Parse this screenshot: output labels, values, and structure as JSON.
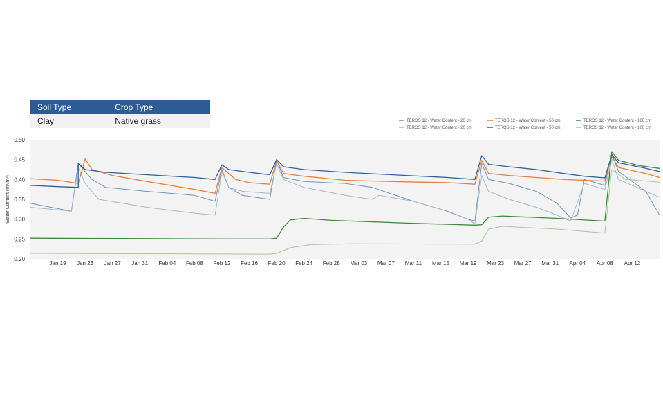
{
  "table": {
    "headers": [
      "Soil Type",
      "Crop Type"
    ],
    "rows": [
      [
        "Clay",
        "Native grass"
      ]
    ],
    "header_color": "#2b5d94"
  },
  "chart_data": {
    "type": "line",
    "title": "",
    "xlabel": "",
    "ylabel": "Water Content (m³/m³)",
    "ylim": [
      0.2,
      0.5
    ],
    "yticks": [
      "0.20",
      "0.25",
      "0.30",
      "0.35",
      "0.40",
      "0.45",
      "0.50"
    ],
    "xlim": [
      "2024-01-15",
      "2024-04-16"
    ],
    "xticks": [
      "Jan 19",
      "Jan 23",
      "Jan 27",
      "Jan 31",
      "Feb 04",
      "Feb 08",
      "Feb 12",
      "Feb 16",
      "Feb 20",
      "Feb 24",
      "Feb 28",
      "Mar 03",
      "Mar 07",
      "Mar 11",
      "Mar 15",
      "Mar 19",
      "Mar 23",
      "Mar 27",
      "Mar 31",
      "Apr 04",
      "Apr 08",
      "Apr 12"
    ],
    "grid": false,
    "legend_position": "top-right",
    "plot_background": "#f3f3f3",
    "series": [
      {
        "name": "TEROS 12 - Water Content - 20 cm",
        "color": "#6b93c0",
        "width": 1,
        "points": [
          [
            "2024-01-15",
            0.34
          ],
          [
            "2024-01-18",
            0.33
          ],
          [
            "2024-01-21",
            0.32
          ],
          [
            "2024-01-22",
            0.441
          ],
          [
            "2024-01-23",
            0.42
          ],
          [
            "2024-01-24",
            0.4
          ],
          [
            "2024-01-26",
            0.38
          ],
          [
            "2024-02-01",
            0.37
          ],
          [
            "2024-02-08",
            0.36
          ],
          [
            "2024-02-10",
            0.35
          ],
          [
            "2024-02-11",
            0.345
          ],
          [
            "2024-02-12",
            0.425
          ],
          [
            "2024-02-13",
            0.38
          ],
          [
            "2024-02-15",
            0.36
          ],
          [
            "2024-02-19",
            0.35
          ],
          [
            "2024-02-20",
            0.449
          ],
          [
            "2024-02-21",
            0.405
          ],
          [
            "2024-02-24",
            0.395
          ],
          [
            "2024-03-01",
            0.39
          ],
          [
            "2024-03-05",
            0.38
          ],
          [
            "2024-03-11",
            0.345
          ],
          [
            "2024-03-16",
            0.32
          ],
          [
            "2024-03-19",
            0.3
          ],
          [
            "2024-03-20",
            0.295
          ],
          [
            "2024-03-21",
            0.44
          ],
          [
            "2024-03-22",
            0.4
          ],
          [
            "2024-03-25",
            0.39
          ],
          [
            "2024-03-29",
            0.37
          ],
          [
            "2024-04-01",
            0.34
          ],
          [
            "2024-04-03",
            0.303
          ],
          [
            "2024-04-04",
            0.31
          ],
          [
            "2024-04-05",
            0.4
          ],
          [
            "2024-04-08",
            0.385
          ],
          [
            "2024-04-09",
            0.465
          ],
          [
            "2024-04-10",
            0.42
          ],
          [
            "2024-04-14",
            0.37
          ],
          [
            "2024-04-16",
            0.31
          ]
        ]
      },
      {
        "name": "TEROS 12 - Water Content - 20 cm",
        "color": "#a5b7c7",
        "width": 1,
        "points": [
          [
            "2024-01-15",
            0.33
          ],
          [
            "2024-01-21",
            0.32
          ],
          [
            "2024-01-22",
            0.43
          ],
          [
            "2024-01-23",
            0.39
          ],
          [
            "2024-01-25",
            0.35
          ],
          [
            "2024-02-01",
            0.33
          ],
          [
            "2024-02-08",
            0.315
          ],
          [
            "2024-02-11",
            0.31
          ],
          [
            "2024-02-12",
            0.42
          ],
          [
            "2024-02-13",
            0.38
          ],
          [
            "2024-02-15",
            0.37
          ],
          [
            "2024-02-19",
            0.365
          ],
          [
            "2024-02-20",
            0.44
          ],
          [
            "2024-02-21",
            0.4
          ],
          [
            "2024-02-24",
            0.38
          ],
          [
            "2024-03-01",
            0.36
          ],
          [
            "2024-03-05",
            0.35
          ],
          [
            "2024-03-06",
            0.36
          ],
          [
            "2024-03-11",
            0.345
          ],
          [
            "2024-03-15",
            0.325
          ],
          [
            "2024-03-19",
            0.3
          ],
          [
            "2024-03-20",
            0.288
          ],
          [
            "2024-03-21",
            0.41
          ],
          [
            "2024-03-22",
            0.37
          ],
          [
            "2024-03-25",
            0.35
          ],
          [
            "2024-03-29",
            0.33
          ],
          [
            "2024-04-01",
            0.31
          ],
          [
            "2024-04-03",
            0.295
          ],
          [
            "2024-04-05",
            0.39
          ],
          [
            "2024-04-08",
            0.375
          ],
          [
            "2024-04-09",
            0.45
          ],
          [
            "2024-04-10",
            0.4
          ],
          [
            "2024-04-14",
            0.37
          ],
          [
            "2024-04-16",
            0.355
          ]
        ]
      },
      {
        "name": "TEROS 12 - Water Content - 50 cm",
        "color": "#e87f3c",
        "width": 1.3,
        "points": [
          [
            "2024-01-15",
            0.402
          ],
          [
            "2024-01-19",
            0.398
          ],
          [
            "2024-01-22",
            0.39
          ],
          [
            "2024-01-23",
            0.452
          ],
          [
            "2024-01-24",
            0.425
          ],
          [
            "2024-01-27",
            0.41
          ],
          [
            "2024-02-01",
            0.395
          ],
          [
            "2024-02-08",
            0.375
          ],
          [
            "2024-02-11",
            0.365
          ],
          [
            "2024-02-12",
            0.43
          ],
          [
            "2024-02-14",
            0.4
          ],
          [
            "2024-02-16",
            0.392
          ],
          [
            "2024-02-19",
            0.388
          ],
          [
            "2024-02-20",
            0.448
          ],
          [
            "2024-02-21",
            0.415
          ],
          [
            "2024-02-24",
            0.408
          ],
          [
            "2024-03-01",
            0.398
          ],
          [
            "2024-03-10",
            0.394
          ],
          [
            "2024-03-16",
            0.392
          ],
          [
            "2024-03-20",
            0.388
          ],
          [
            "2024-03-21",
            0.448
          ],
          [
            "2024-03-22",
            0.415
          ],
          [
            "2024-03-25",
            0.41
          ],
          [
            "2024-03-29",
            0.405
          ],
          [
            "2024-04-02",
            0.4
          ],
          [
            "2024-04-05",
            0.398
          ],
          [
            "2024-04-08",
            0.396
          ],
          [
            "2024-04-09",
            0.458
          ],
          [
            "2024-04-10",
            0.43
          ],
          [
            "2024-04-14",
            0.415
          ],
          [
            "2024-04-16",
            0.405
          ]
        ]
      },
      {
        "name": "TEROS 12 - Water Content - 50 cm",
        "color": "#2f5fa0",
        "width": 1.3,
        "points": [
          [
            "2024-01-15",
            0.385
          ],
          [
            "2024-01-19",
            0.382
          ],
          [
            "2024-01-22",
            0.38
          ],
          [
            "2024-01-22",
            0.44
          ],
          [
            "2024-01-23",
            0.425
          ],
          [
            "2024-01-26",
            0.418
          ],
          [
            "2024-02-01",
            0.412
          ],
          [
            "2024-02-08",
            0.405
          ],
          [
            "2024-02-11",
            0.4
          ],
          [
            "2024-02-12",
            0.437
          ],
          [
            "2024-02-13",
            0.425
          ],
          [
            "2024-02-16",
            0.418
          ],
          [
            "2024-02-19",
            0.412
          ],
          [
            "2024-02-20",
            0.45
          ],
          [
            "2024-02-21",
            0.432
          ],
          [
            "2024-02-24",
            0.425
          ],
          [
            "2024-03-01",
            0.418
          ],
          [
            "2024-03-10",
            0.41
          ],
          [
            "2024-03-16",
            0.405
          ],
          [
            "2024-03-20",
            0.4
          ],
          [
            "2024-03-21",
            0.46
          ],
          [
            "2024-03-22",
            0.438
          ],
          [
            "2024-03-25",
            0.432
          ],
          [
            "2024-03-29",
            0.425
          ],
          [
            "2024-04-02",
            0.415
          ],
          [
            "2024-04-05",
            0.408
          ],
          [
            "2024-04-08",
            0.404
          ],
          [
            "2024-04-09",
            0.462
          ],
          [
            "2024-04-10",
            0.442
          ],
          [
            "2024-04-14",
            0.428
          ],
          [
            "2024-04-16",
            0.42
          ]
        ]
      },
      {
        "name": "TEROS 12 - Water Content - 100 cm",
        "color": "#3e8a3a",
        "width": 1.3,
        "points": [
          [
            "2024-01-15",
            0.252
          ],
          [
            "2024-02-01",
            0.251
          ],
          [
            "2024-02-14",
            0.25
          ],
          [
            "2024-02-19",
            0.25
          ],
          [
            "2024-02-20",
            0.252
          ],
          [
            "2024-02-21",
            0.28
          ],
          [
            "2024-02-22",
            0.298
          ],
          [
            "2024-02-24",
            0.302
          ],
          [
            "2024-02-28",
            0.297
          ],
          [
            "2024-03-10",
            0.29
          ],
          [
            "2024-03-20",
            0.285
          ],
          [
            "2024-03-21",
            0.286
          ],
          [
            "2024-03-22",
            0.305
          ],
          [
            "2024-03-24",
            0.308
          ],
          [
            "2024-04-01",
            0.302
          ],
          [
            "2024-04-08",
            0.295
          ],
          [
            "2024-04-09",
            0.47
          ],
          [
            "2024-04-10",
            0.448
          ],
          [
            "2024-04-13",
            0.435
          ],
          [
            "2024-04-16",
            0.428
          ]
        ]
      },
      {
        "name": "TEROS 12 - Water Content - 100 cm",
        "color": "#a9c49a",
        "width": 1,
        "points": [
          [
            "2024-01-15",
            0.214
          ],
          [
            "2024-02-01",
            0.213
          ],
          [
            "2024-02-19",
            0.212
          ],
          [
            "2024-02-20",
            0.214
          ],
          [
            "2024-02-22",
            0.228
          ],
          [
            "2024-02-25",
            0.236
          ],
          [
            "2024-03-02",
            0.238
          ],
          [
            "2024-03-20",
            0.237
          ],
          [
            "2024-03-21",
            0.245
          ],
          [
            "2024-03-22",
            0.275
          ],
          [
            "2024-03-24",
            0.282
          ],
          [
            "2024-04-01",
            0.275
          ],
          [
            "2024-04-08",
            0.265
          ],
          [
            "2024-04-09",
            0.425
          ],
          [
            "2024-04-11",
            0.4
          ],
          [
            "2024-04-16",
            0.393
          ]
        ]
      }
    ]
  }
}
